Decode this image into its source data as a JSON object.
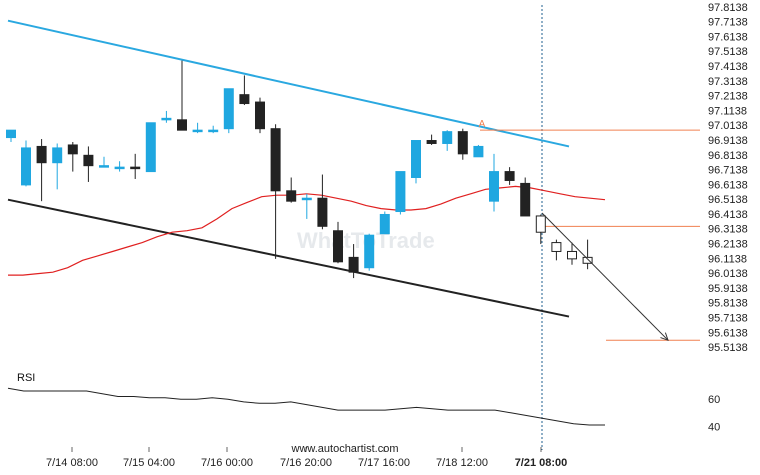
{
  "chart_data": {
    "type": "candlestick",
    "y_ticks": [
      "97.8138",
      "97.7138",
      "97.6138",
      "97.5138",
      "97.4138",
      "97.3138",
      "97.2138",
      "97.1138",
      "97.0138",
      "96.9138",
      "96.8138",
      "96.7138",
      "96.6138",
      "96.5138",
      "96.4138",
      "96.3138",
      "96.2138",
      "96.1138",
      "96.0138",
      "95.9138",
      "95.8138",
      "95.7138",
      "95.6138",
      "95.5138"
    ],
    "ylim": [
      95.46,
      97.86
    ],
    "x_ticks": [
      "7/14 08:00",
      "7/15 04:00",
      "7/16 00:00",
      "7/16 20:00",
      "7/17 16:00",
      "7/18 12:00",
      "7/21 08:00"
    ],
    "x_ticks_bold": "7/21 08:00",
    "candles": [
      {
        "o": 96.93,
        "h": 96.98,
        "l": 96.9,
        "c": 96.98
      },
      {
        "o": 96.61,
        "h": 96.91,
        "l": 96.6,
        "c": 96.86
      },
      {
        "o": 96.87,
        "h": 96.92,
        "l": 96.5,
        "c": 96.76
      },
      {
        "o": 96.76,
        "h": 96.89,
        "l": 96.58,
        "c": 96.86
      },
      {
        "o": 96.88,
        "h": 96.9,
        "l": 96.7,
        "c": 96.82
      },
      {
        "o": 96.81,
        "h": 96.87,
        "l": 96.63,
        "c": 96.74
      },
      {
        "o": 96.74,
        "h": 96.8,
        "l": 96.73,
        "c": 96.74
      },
      {
        "o": 96.73,
        "h": 96.77,
        "l": 96.7,
        "c": 96.73
      },
      {
        "o": 96.73,
        "h": 96.82,
        "l": 96.65,
        "c": 96.72
      },
      {
        "o": 96.7,
        "h": 97.03,
        "l": 96.7,
        "c": 97.03
      },
      {
        "o": 97.05,
        "h": 97.11,
        "l": 97.03,
        "c": 97.06
      },
      {
        "o": 97.05,
        "h": 97.45,
        "l": 96.99,
        "c": 96.98
      },
      {
        "o": 96.98,
        "h": 97.03,
        "l": 96.96,
        "c": 96.98
      },
      {
        "o": 96.97,
        "h": 97.01,
        "l": 96.96,
        "c": 96.98
      },
      {
        "o": 96.99,
        "h": 97.26,
        "l": 96.96,
        "c": 97.26
      },
      {
        "o": 97.22,
        "h": 97.35,
        "l": 97.15,
        "c": 97.16
      },
      {
        "o": 97.17,
        "h": 97.2,
        "l": 96.96,
        "c": 96.99
      },
      {
        "o": 96.99,
        "h": 97.02,
        "l": 96.11,
        "c": 96.57
      },
      {
        "o": 96.57,
        "h": 96.66,
        "l": 96.49,
        "c": 96.5
      },
      {
        "o": 96.51,
        "h": 96.55,
        "l": 96.38,
        "c": 96.52
      },
      {
        "o": 96.52,
        "h": 96.68,
        "l": 96.31,
        "c": 96.33
      },
      {
        "o": 96.3,
        "h": 96.36,
        "l": 96.08,
        "c": 96.09
      },
      {
        "o": 96.12,
        "h": 96.21,
        "l": 95.98,
        "c": 96.02
      },
      {
        "o": 96.05,
        "h": 96.28,
        "l": 96.03,
        "c": 96.27
      },
      {
        "o": 96.28,
        "h": 96.43,
        "l": 96.28,
        "c": 96.41
      },
      {
        "o": 96.43,
        "h": 96.7,
        "l": 96.41,
        "c": 96.7
      },
      {
        "o": 96.66,
        "h": 96.91,
        "l": 96.62,
        "c": 96.91
      },
      {
        "o": 96.91,
        "h": 96.95,
        "l": 96.88,
        "c": 96.89
      },
      {
        "o": 96.89,
        "h": 96.98,
        "l": 96.84,
        "c": 96.97
      },
      {
        "o": 96.97,
        "h": 96.99,
        "l": 96.78,
        "c": 96.82
      },
      {
        "o": 96.8,
        "h": 96.88,
        "l": 96.8,
        "c": 96.87
      },
      {
        "o": 96.5,
        "h": 96.82,
        "l": 96.43,
        "c": 96.7
      },
      {
        "o": 96.7,
        "h": 96.73,
        "l": 96.61,
        "c": 96.64
      },
      {
        "o": 96.62,
        "h": 96.66,
        "l": 96.41,
        "c": 96.4
      },
      {
        "o": 96.4,
        "h": 96.41,
        "l": 96.21,
        "c": 96.29
      },
      {
        "o": 96.22,
        "h": 96.24,
        "l": 96.1,
        "c": 96.16
      },
      {
        "o": 96.16,
        "h": 96.22,
        "l": 96.07,
        "c": 96.11
      },
      {
        "o": 96.12,
        "h": 96.24,
        "l": 96.04,
        "c": 96.08
      }
    ],
    "ma": [
      96.0,
      96.0,
      96.01,
      96.02,
      96.05,
      96.1,
      96.13,
      96.16,
      96.19,
      96.22,
      96.26,
      96.29,
      96.3,
      96.32,
      96.38,
      96.45,
      96.49,
      96.53,
      96.54,
      96.54,
      96.55,
      96.54,
      96.52,
      96.5,
      96.47,
      96.45,
      96.44,
      96.44,
      96.45,
      96.48,
      96.52,
      96.55,
      96.58,
      96.59,
      96.6,
      96.59,
      96.57,
      96.55,
      96.53,
      96.52,
      96.51
    ],
    "upper_trendline": {
      "from": [
        0,
        97.72
      ],
      "to": [
        35,
        96.87
      ],
      "color": "#2aa8e0"
    },
    "lower_trendline": {
      "from": [
        0,
        96.51
      ],
      "to": [
        35,
        95.72
      ],
      "color": "#222222"
    },
    "resistance_level": {
      "value": 96.98,
      "color": "#f08050"
    },
    "support_level": {
      "value": 96.33,
      "color": "#f08050"
    },
    "target_level": {
      "value": 95.56,
      "color": "#f08050"
    },
    "marker_label": "A",
    "rsi": {
      "label": "RSI",
      "ticks": [
        "60",
        "40"
      ],
      "values": [
        68,
        66,
        66,
        66,
        66,
        66,
        64,
        62,
        62,
        61,
        61,
        60,
        60,
        61,
        60,
        58,
        57,
        57,
        58,
        56,
        54,
        52,
        52,
        52,
        52,
        53,
        54,
        53,
        52,
        52,
        52,
        52,
        50,
        48,
        46,
        44,
        42,
        41,
        41
      ]
    },
    "watermark": "WhatToTrade",
    "source_label": "www.autochartist.com",
    "colors": {
      "up": "#1fa7e0",
      "down": "#222222",
      "ma": "#e02020",
      "divider": "#1f5f8f"
    }
  }
}
